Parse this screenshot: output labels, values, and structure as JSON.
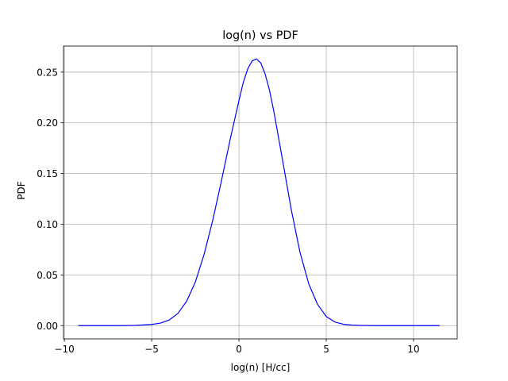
{
  "chart_data": {
    "type": "line",
    "title": "log(n) vs PDF",
    "xlabel": "log(n) [H/cc]",
    "ylabel": "PDF",
    "xlim": [
      -10.05,
      12.5
    ],
    "ylim": [
      -0.0131,
      0.2757
    ],
    "grid": true,
    "line_color": "#0000ff",
    "x_ticks": [
      {
        "value": -10,
        "label": "−10"
      },
      {
        "value": -5,
        "label": "−5"
      },
      {
        "value": 0,
        "label": "0"
      },
      {
        "value": 5,
        "label": "5"
      },
      {
        "value": 10,
        "label": "10"
      }
    ],
    "y_ticks": [
      {
        "value": 0.0,
        "label": "0.00"
      },
      {
        "value": 0.05,
        "label": "0.05"
      },
      {
        "value": 0.1,
        "label": "0.10"
      },
      {
        "value": 0.15,
        "label": "0.15"
      },
      {
        "value": 0.2,
        "label": "0.20"
      },
      {
        "value": 0.25,
        "label": "0.25"
      }
    ],
    "series": [
      {
        "x": [
          -9.2,
          -8.0,
          -7.0,
          -6.0,
          -5.0,
          -4.5,
          -4.0,
          -3.5,
          -3.0,
          -2.5,
          -2.0,
          -1.5,
          -1.0,
          -0.5,
          0.0,
          0.25,
          0.5,
          0.75,
          1.0,
          1.25,
          1.5,
          1.75,
          2.0,
          2.5,
          3.0,
          3.5,
          4.0,
          4.5,
          5.0,
          5.5,
          6.0,
          6.5,
          7.0,
          8.0,
          9.0,
          10.0,
          11.5
        ],
        "y": [
          0.0,
          0.0,
          0.0,
          0.0002,
          0.0012,
          0.0025,
          0.0055,
          0.012,
          0.024,
          0.043,
          0.07,
          0.104,
          0.143,
          0.184,
          0.222,
          0.24,
          0.253,
          0.261,
          0.263,
          0.259,
          0.248,
          0.232,
          0.211,
          0.163,
          0.114,
          0.072,
          0.041,
          0.021,
          0.009,
          0.0035,
          0.0013,
          0.0005,
          0.0002,
          0.0,
          0.0,
          0.0,
          0.0
        ]
      }
    ]
  }
}
